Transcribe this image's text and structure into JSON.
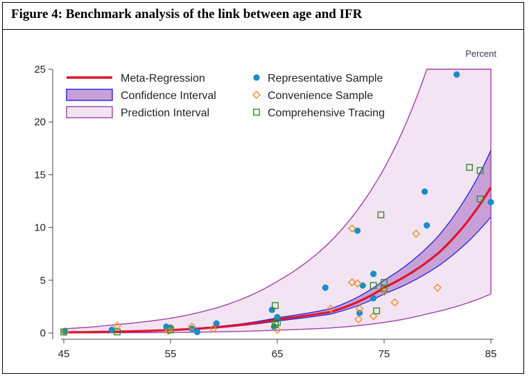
{
  "figure_title": "Figure 4: Benchmark analysis of the link between age and IFR",
  "chart_data": {
    "type": "scatter",
    "title": "Figure 4: Benchmark analysis of the link between age and IFR",
    "unit_label": "Percent",
    "xlim": [
      45,
      85
    ],
    "ylim": [
      0,
      25
    ],
    "x_ticks": [
      45,
      55,
      65,
      75,
      85
    ],
    "y_ticks": [
      0,
      5,
      10,
      15,
      20,
      25
    ],
    "grid": "none",
    "legend_placement": "top-left",
    "colors": {
      "meta_regression": "#e0142c",
      "confidence_fill": "#c8a0d8",
      "confidence_edge": "#2020e0",
      "prediction_fill": "#f3e4f3",
      "prediction_edge": "#a040a8",
      "representative": "#1a8cc8",
      "convenience": "#e8902c",
      "comprehensive": "#2e8b2e"
    },
    "legend": [
      {
        "label": "Meta-Regression",
        "kind": "line"
      },
      {
        "label": "Confidence Interval",
        "kind": "band"
      },
      {
        "label": "Prediction Interval",
        "kind": "band"
      },
      {
        "label": "Representative Sample",
        "kind": "circle"
      },
      {
        "label": "Convenience Sample",
        "kind": "diamond"
      },
      {
        "label": "Comprehensive Tracing",
        "kind": "square"
      }
    ],
    "meta_regression": {
      "x": [
        45,
        50,
        55,
        60,
        65,
        70,
        75,
        80,
        85
      ],
      "y": [
        0.06,
        0.13,
        0.28,
        0.6,
        1.3,
        2.0,
        4.3,
        7.5,
        13.8
      ]
    },
    "confidence_interval": {
      "x": [
        45,
        50,
        55,
        60,
        65,
        70,
        75,
        80,
        85
      ],
      "lower": [
        0.05,
        0.11,
        0.25,
        0.55,
        1.15,
        1.8,
        3.7,
        6.3,
        11.0
      ],
      "upper": [
        0.08,
        0.16,
        0.32,
        0.68,
        1.45,
        2.3,
        5.0,
        9.1,
        17.3
      ]
    },
    "prediction_interval": {
      "x": [
        45,
        50,
        55,
        60,
        65,
        70,
        75,
        79,
        85
      ],
      "lower": [
        0.01,
        0.02,
        0.05,
        0.12,
        0.27,
        0.48,
        1.0,
        1.8,
        3.7
      ],
      "upper": [
        0.4,
        0.8,
        1.4,
        2.6,
        4.9,
        8.7,
        15.6,
        25,
        25
      ]
    },
    "series": [
      {
        "name": "Representative Sample",
        "marker": "circle",
        "points": [
          [
            45.1,
            0.2
          ],
          [
            49.5,
            0.3
          ],
          [
            54.6,
            0.6
          ],
          [
            55.0,
            0.5
          ],
          [
            57.0,
            0.4
          ],
          [
            57.5,
            0.1
          ],
          [
            59.3,
            0.9
          ],
          [
            64.5,
            2.2
          ],
          [
            64.7,
            0.6
          ],
          [
            65.0,
            1.5
          ],
          [
            69.5,
            4.3
          ],
          [
            72.5,
            9.7
          ],
          [
            72.7,
            1.9
          ],
          [
            73.0,
            4.5
          ],
          [
            74.0,
            5.6
          ],
          [
            74.0,
            3.3
          ],
          [
            78.8,
            13.4
          ],
          [
            79.0,
            10.2
          ],
          [
            81.8,
            24.5
          ],
          [
            85.0,
            12.4
          ]
        ]
      },
      {
        "name": "Convenience Sample",
        "marker": "diamond",
        "points": [
          [
            45.1,
            0.1
          ],
          [
            50.0,
            0.7
          ],
          [
            54.8,
            0.2
          ],
          [
            55.0,
            0.3
          ],
          [
            57.0,
            0.6
          ],
          [
            59.0,
            0.4
          ],
          [
            65.0,
            0.3
          ],
          [
            70.0,
            2.3
          ],
          [
            72.0,
            4.8
          ],
          [
            72.0,
            9.9
          ],
          [
            72.5,
            4.7
          ],
          [
            72.6,
            1.3
          ],
          [
            72.7,
            2.3
          ],
          [
            74.0,
            1.6
          ],
          [
            75.0,
            3.9
          ],
          [
            76.0,
            2.9
          ],
          [
            78.0,
            9.4
          ],
          [
            80.0,
            4.3
          ]
        ]
      },
      {
        "name": "Comprehensive Tracing",
        "marker": "square",
        "points": [
          [
            45.0,
            0.1
          ],
          [
            50.0,
            0.1
          ],
          [
            55.0,
            0.3
          ],
          [
            64.8,
            0.8
          ],
          [
            65.0,
            1.0
          ],
          [
            64.8,
            2.6
          ],
          [
            74.0,
            4.5
          ],
          [
            74.3,
            2.1
          ],
          [
            74.7,
            11.2
          ],
          [
            75.0,
            4.8
          ],
          [
            75.0,
            4.2
          ],
          [
            83.0,
            15.7
          ],
          [
            84.0,
            15.4
          ],
          [
            84.0,
            12.7
          ]
        ]
      }
    ]
  }
}
